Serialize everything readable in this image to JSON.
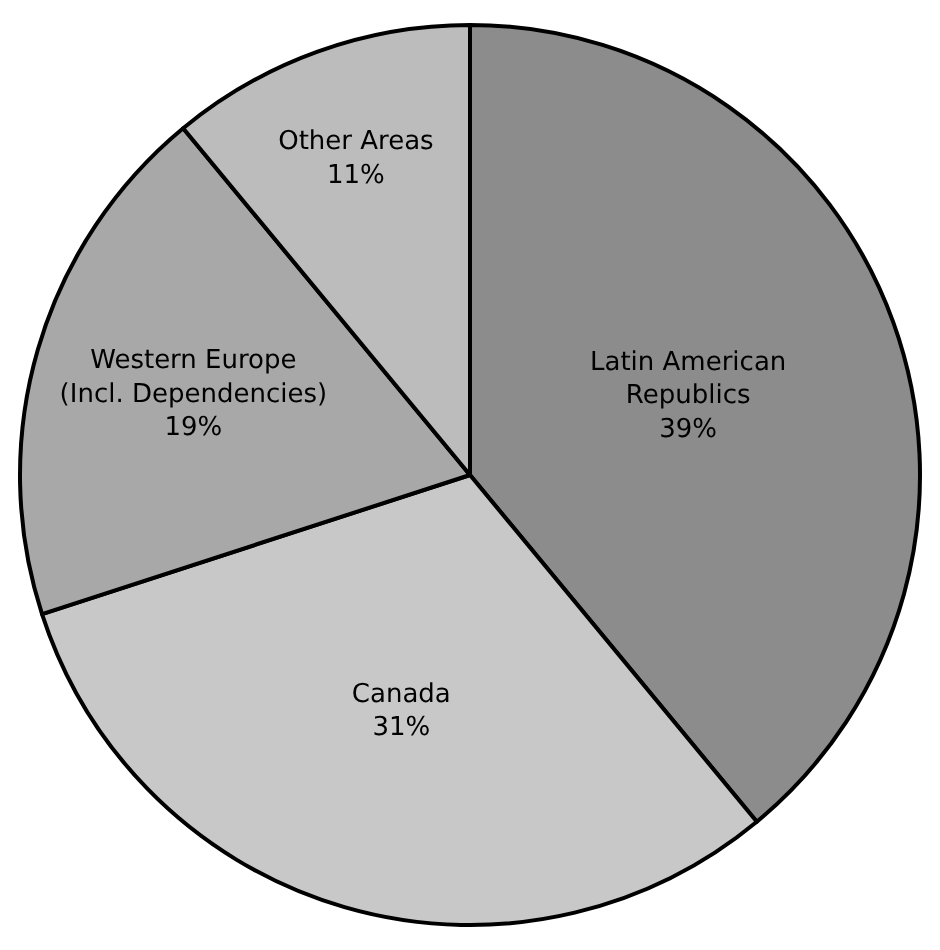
{
  "chart_data": {
    "type": "pie",
    "categories": [
      "Latin American Republics",
      "Canada",
      "Western Europe (Incl. Dependencies)",
      "Other Areas"
    ],
    "values": [
      39,
      31,
      19,
      11
    ],
    "value_labels": [
      "39%",
      "31%",
      "19%",
      "11%"
    ],
    "colors": [
      "#8c8c8c",
      "#c8c8c8",
      "#a8a8a8",
      "#bcbcbc"
    ]
  }
}
